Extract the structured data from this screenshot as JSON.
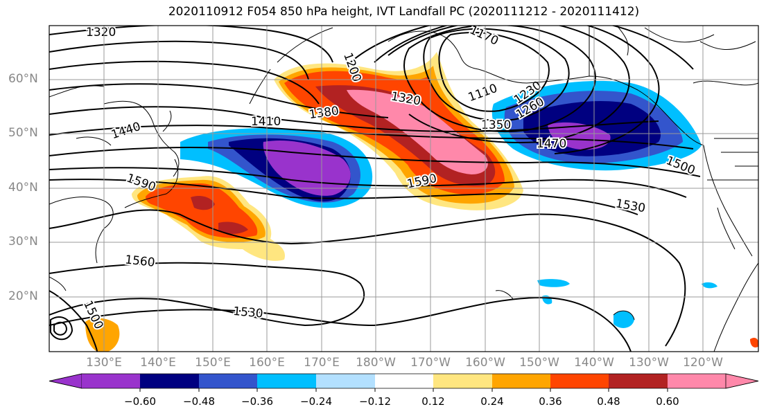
{
  "title": "2020110912 F054 850 hPa height, IVT Landfall PC (2020111212 - 2020111412)",
  "lat_labels": [
    "60°N",
    "50°N",
    "40°N",
    "30°N",
    "20°N"
  ],
  "lon_labels": [
    "130°E",
    "140°E",
    "150°E",
    "160°E",
    "170°E",
    "180°W",
    "170°W",
    "160°W",
    "150°W",
    "140°W",
    "130°W",
    "120°W"
  ],
  "contour_labels": [
    "1320",
    "1170",
    "1200",
    "1110",
    "1230",
    "1260",
    "1380",
    "1320",
    "1410",
    "1440",
    "1350",
    "1470",
    "1590",
    "1590",
    "1500",
    "1530",
    "1560",
    "1530",
    "1500"
  ],
  "colorbar": {
    "ticks": [
      "−0.60",
      "−0.48",
      "−0.36",
      "−0.24",
      "−0.12",
      "0.12",
      "0.24",
      "0.36",
      "0.48",
      "0.60"
    ],
    "colors": [
      "#9933cc",
      "#000080",
      "#3355cc",
      "#00bfff",
      "#b3e0ff",
      "#ffffff",
      "#ffe680",
      "#ffa500",
      "#ff4500",
      "#b22222",
      "#ff88aa"
    ]
  }
}
